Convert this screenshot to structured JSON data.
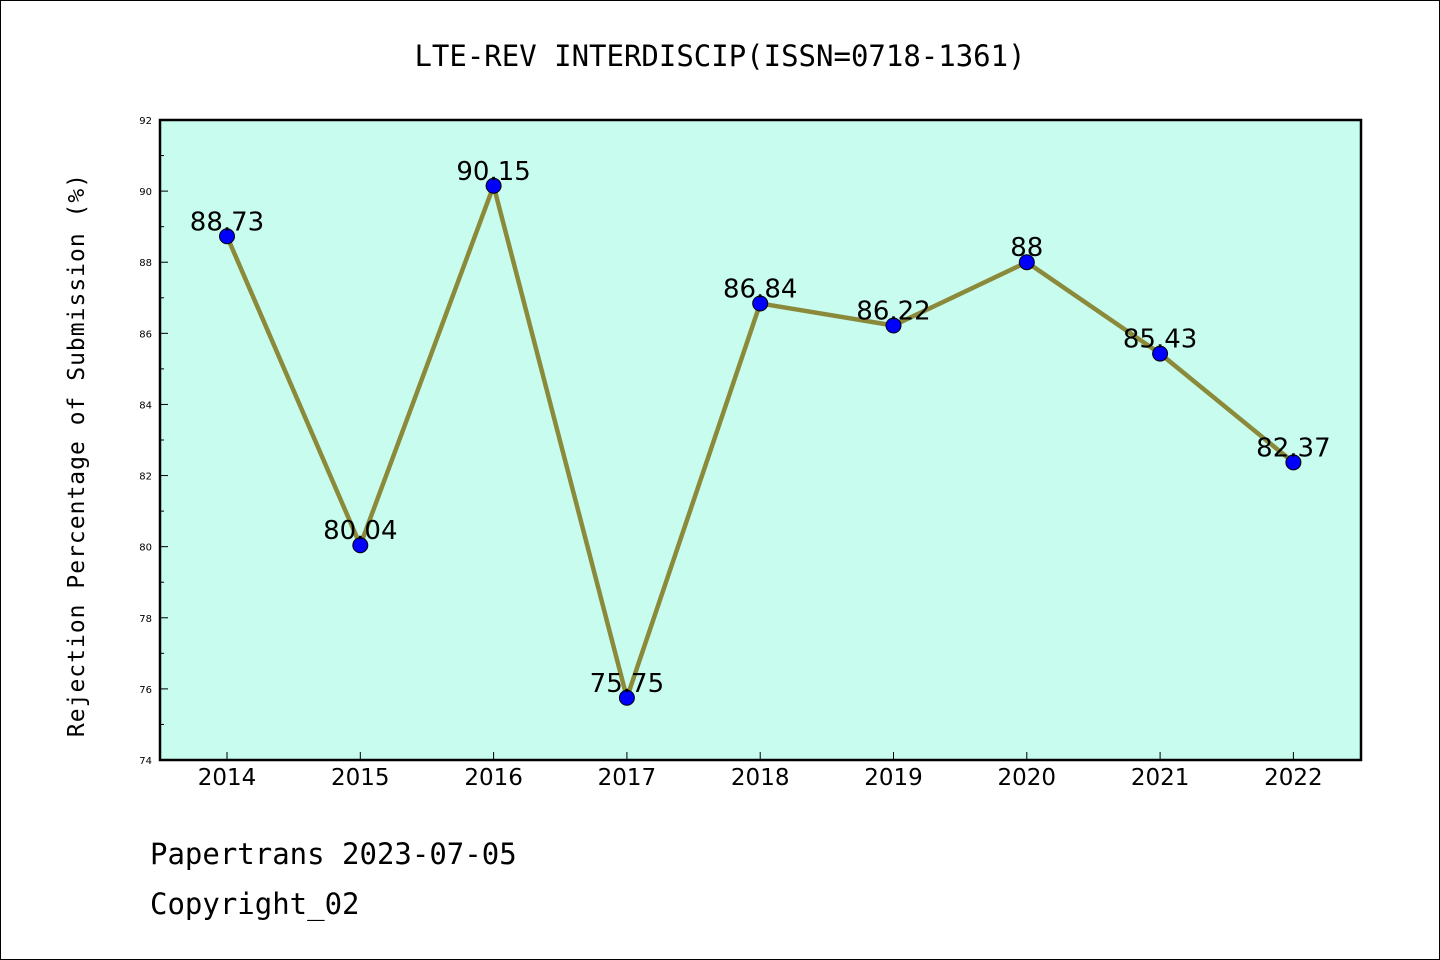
{
  "footer": {
    "line1": "Papertrans 2023-07-05",
    "line2": "Copyright_02"
  },
  "chart_data": {
    "type": "line",
    "title": "LTE-REV INTERDISCIP(ISSN=0718-1361)",
    "xlabel": "",
    "ylabel": "Rejection Percentage of Submission (%)",
    "categories": [
      "2014",
      "2015",
      "2016",
      "2017",
      "2018",
      "2019",
      "2020",
      "2021",
      "2022"
    ],
    "series": [
      {
        "values": [
          88.73,
          80.04,
          90.15,
          75.75,
          86.84,
          86.22,
          88,
          85.43,
          82.37
        ]
      }
    ],
    "data_labels": [
      "88.73",
      "80.04",
      "90.15",
      "75.75",
      "86.84",
      "86.22",
      "88",
      "85.43",
      "82.37"
    ],
    "ylim": [
      74,
      92
    ],
    "yticks": [
      74,
      76,
      78,
      80,
      82,
      84,
      86,
      88,
      90,
      92
    ],
    "grid": false,
    "legend": "none",
    "colors": {
      "plot_background": "#c8fcee",
      "line": "#8b8a3a",
      "marker": "#0000ff"
    }
  }
}
